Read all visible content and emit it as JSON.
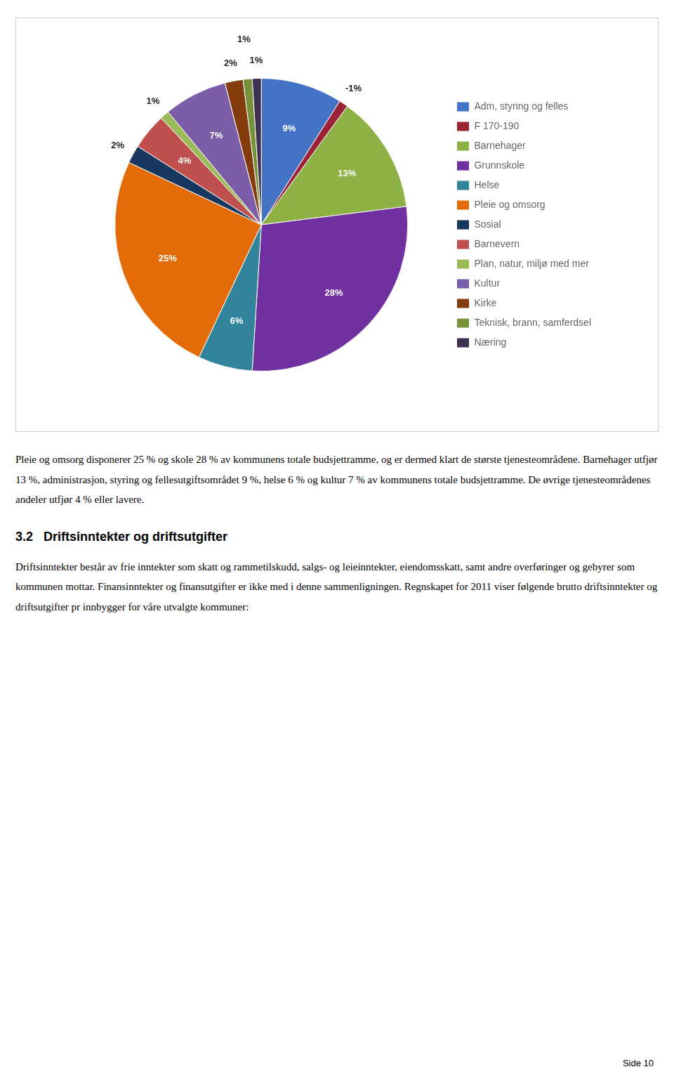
{
  "chart_data": {
    "type": "pie",
    "categories": [
      "Adm, styring og felles",
      "F 170-190",
      "Barnehager",
      "Grunnskole",
      "Helse",
      "Pleie og omsorg",
      "Sosial",
      "Barnevern",
      "Plan, natur, miljø med mer",
      "Kultur",
      "Kirke",
      "Teknisk, brann, samferdsel",
      "Næring"
    ],
    "values": [
      9,
      -1,
      13,
      28,
      6,
      25,
      2,
      4,
      1,
      7,
      2,
      1,
      1
    ],
    "value_labels": [
      "9%",
      "-1%",
      "13%",
      "28%",
      "6%",
      "25%",
      "2%",
      "4%",
      "1%",
      "7%",
      "2%",
      "1%",
      "1%"
    ],
    "colors": [
      "#4472C4",
      "#9B2335",
      "#8DB144",
      "#7030A0",
      "#31849B",
      "#E36C09",
      "#17375E",
      "#C0504D",
      "#9BBB59",
      "#7B5EA7",
      "#843C0C",
      "#76933C",
      "#403152"
    ],
    "data_labels": true,
    "legend": "right",
    "annotations": [
      "Pleie og omsorg disponerer 25 % og skole 28 % av kommunens totale budsjettramme, og er dermed klart de største tjenesteområdene. Barnehager utfjør 13 %, administrasjon, styring og fellesutgiftsområdet 9 %, helse 6 % og kultur 7 % av kommunens totale budsjettramme. De øvrige tjenesteområdenes andeler utfjør 4 % eller lavere.",
      "3.2   Driftsinntekter og driftsutgifter",
      "Driftsinntekter består av frie inntekter som skatt og rammetilskudd, salgs- og leieinntekter, eiendomsskatt, samt andre overføringer og gebyrer som kommunen mottar. Finansinntekter og finansutgifter er ikke med i denne sammenligningen. Regnskapet for 2011 viser følgende brutto driftsinntekter og driftsutgifter pr innbygger for våre utvalgte kommuner:",
      "Side 10"
    ]
  }
}
